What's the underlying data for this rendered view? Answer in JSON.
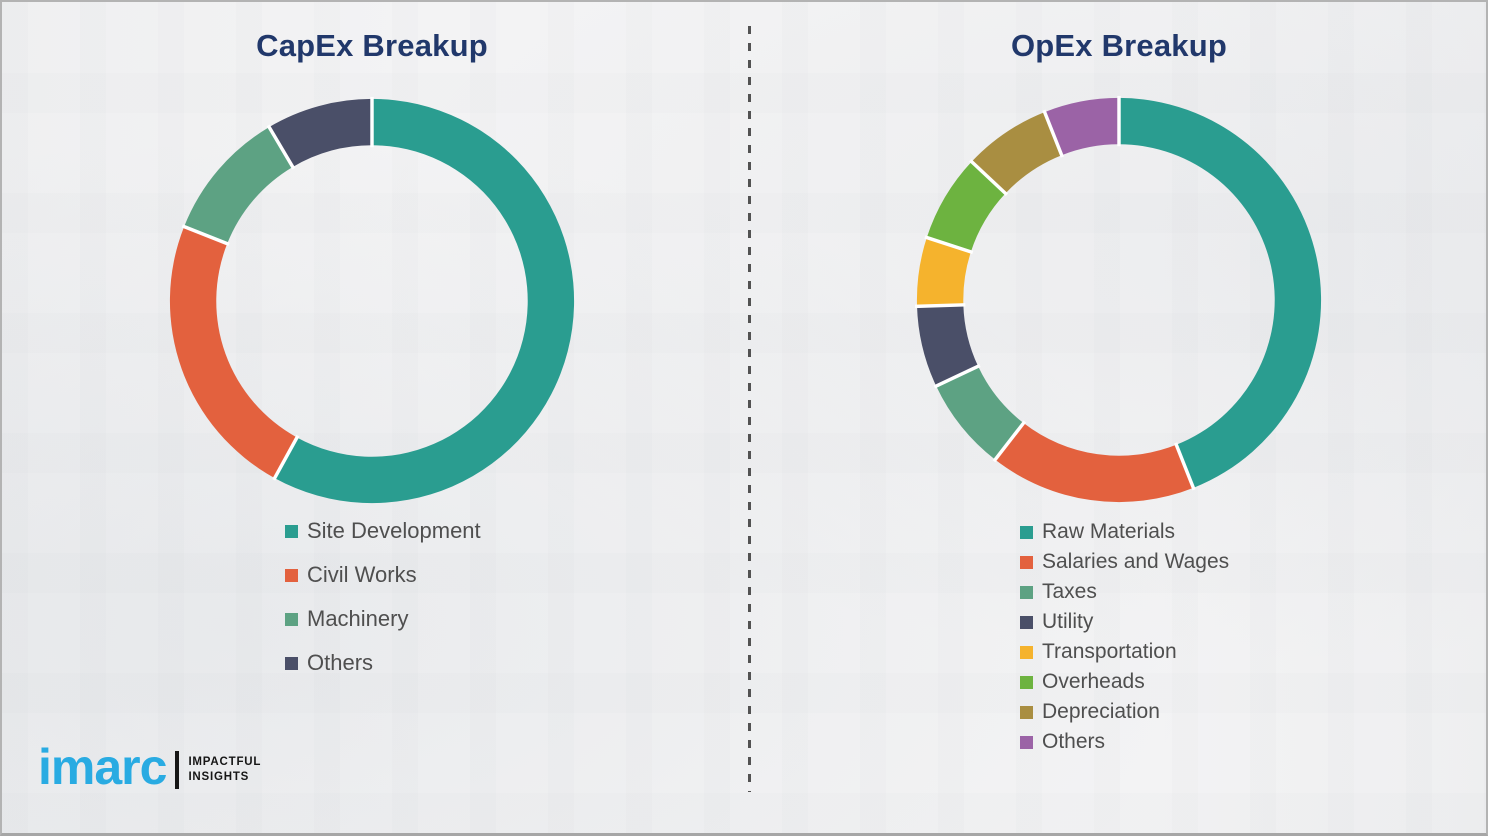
{
  "theme": {
    "title_color": "#21386b",
    "legend_text_color": "#4f4f4f",
    "background_color": "#f3f3f4",
    "divider_color": "#525252",
    "separator_color": "#ffffff"
  },
  "chart_data": [
    {
      "type": "pie",
      "subtype": "donut",
      "title": "CapEx Breakup",
      "labels": [
        "Site Development",
        "Civil Works",
        "Machinery",
        "Others"
      ],
      "values": [
        58,
        23,
        10.5,
        8.5
      ],
      "value_format": "percent-of-whole (estimated from arc angles)",
      "colors": [
        "#2a9d90",
        "#e3613e",
        "#5da283",
        "#4a4f68"
      ],
      "start_angle_deg": 0,
      "direction": "clockwise",
      "inner_radius_ratio": 0.77,
      "legend_position": "below-left"
    },
    {
      "type": "pie",
      "subtype": "donut",
      "title": "OpEx Breakup",
      "labels": [
        "Raw Materials",
        "Salaries and Wages",
        "Taxes",
        "Utility",
        "Transportation",
        "Overheads",
        "Depreciation",
        "Others"
      ],
      "values": [
        44,
        16.5,
        7.5,
        6.5,
        5.5,
        7,
        7,
        6
      ],
      "value_format": "percent-of-whole (estimated from arc angles)",
      "colors": [
        "#2a9d90",
        "#e3613e",
        "#5da283",
        "#4a4f68",
        "#f5b32d",
        "#6db340",
        "#a98e41",
        "#9b63a6"
      ],
      "start_angle_deg": 0,
      "direction": "clockwise",
      "inner_radius_ratio": 0.77,
      "legend_position": "below-left"
    }
  ],
  "logo": {
    "brand": "imarc",
    "brand_color": "#29abe2",
    "tagline_line1": "IMPACTFUL",
    "tagline_line2": "INSIGHTS"
  }
}
